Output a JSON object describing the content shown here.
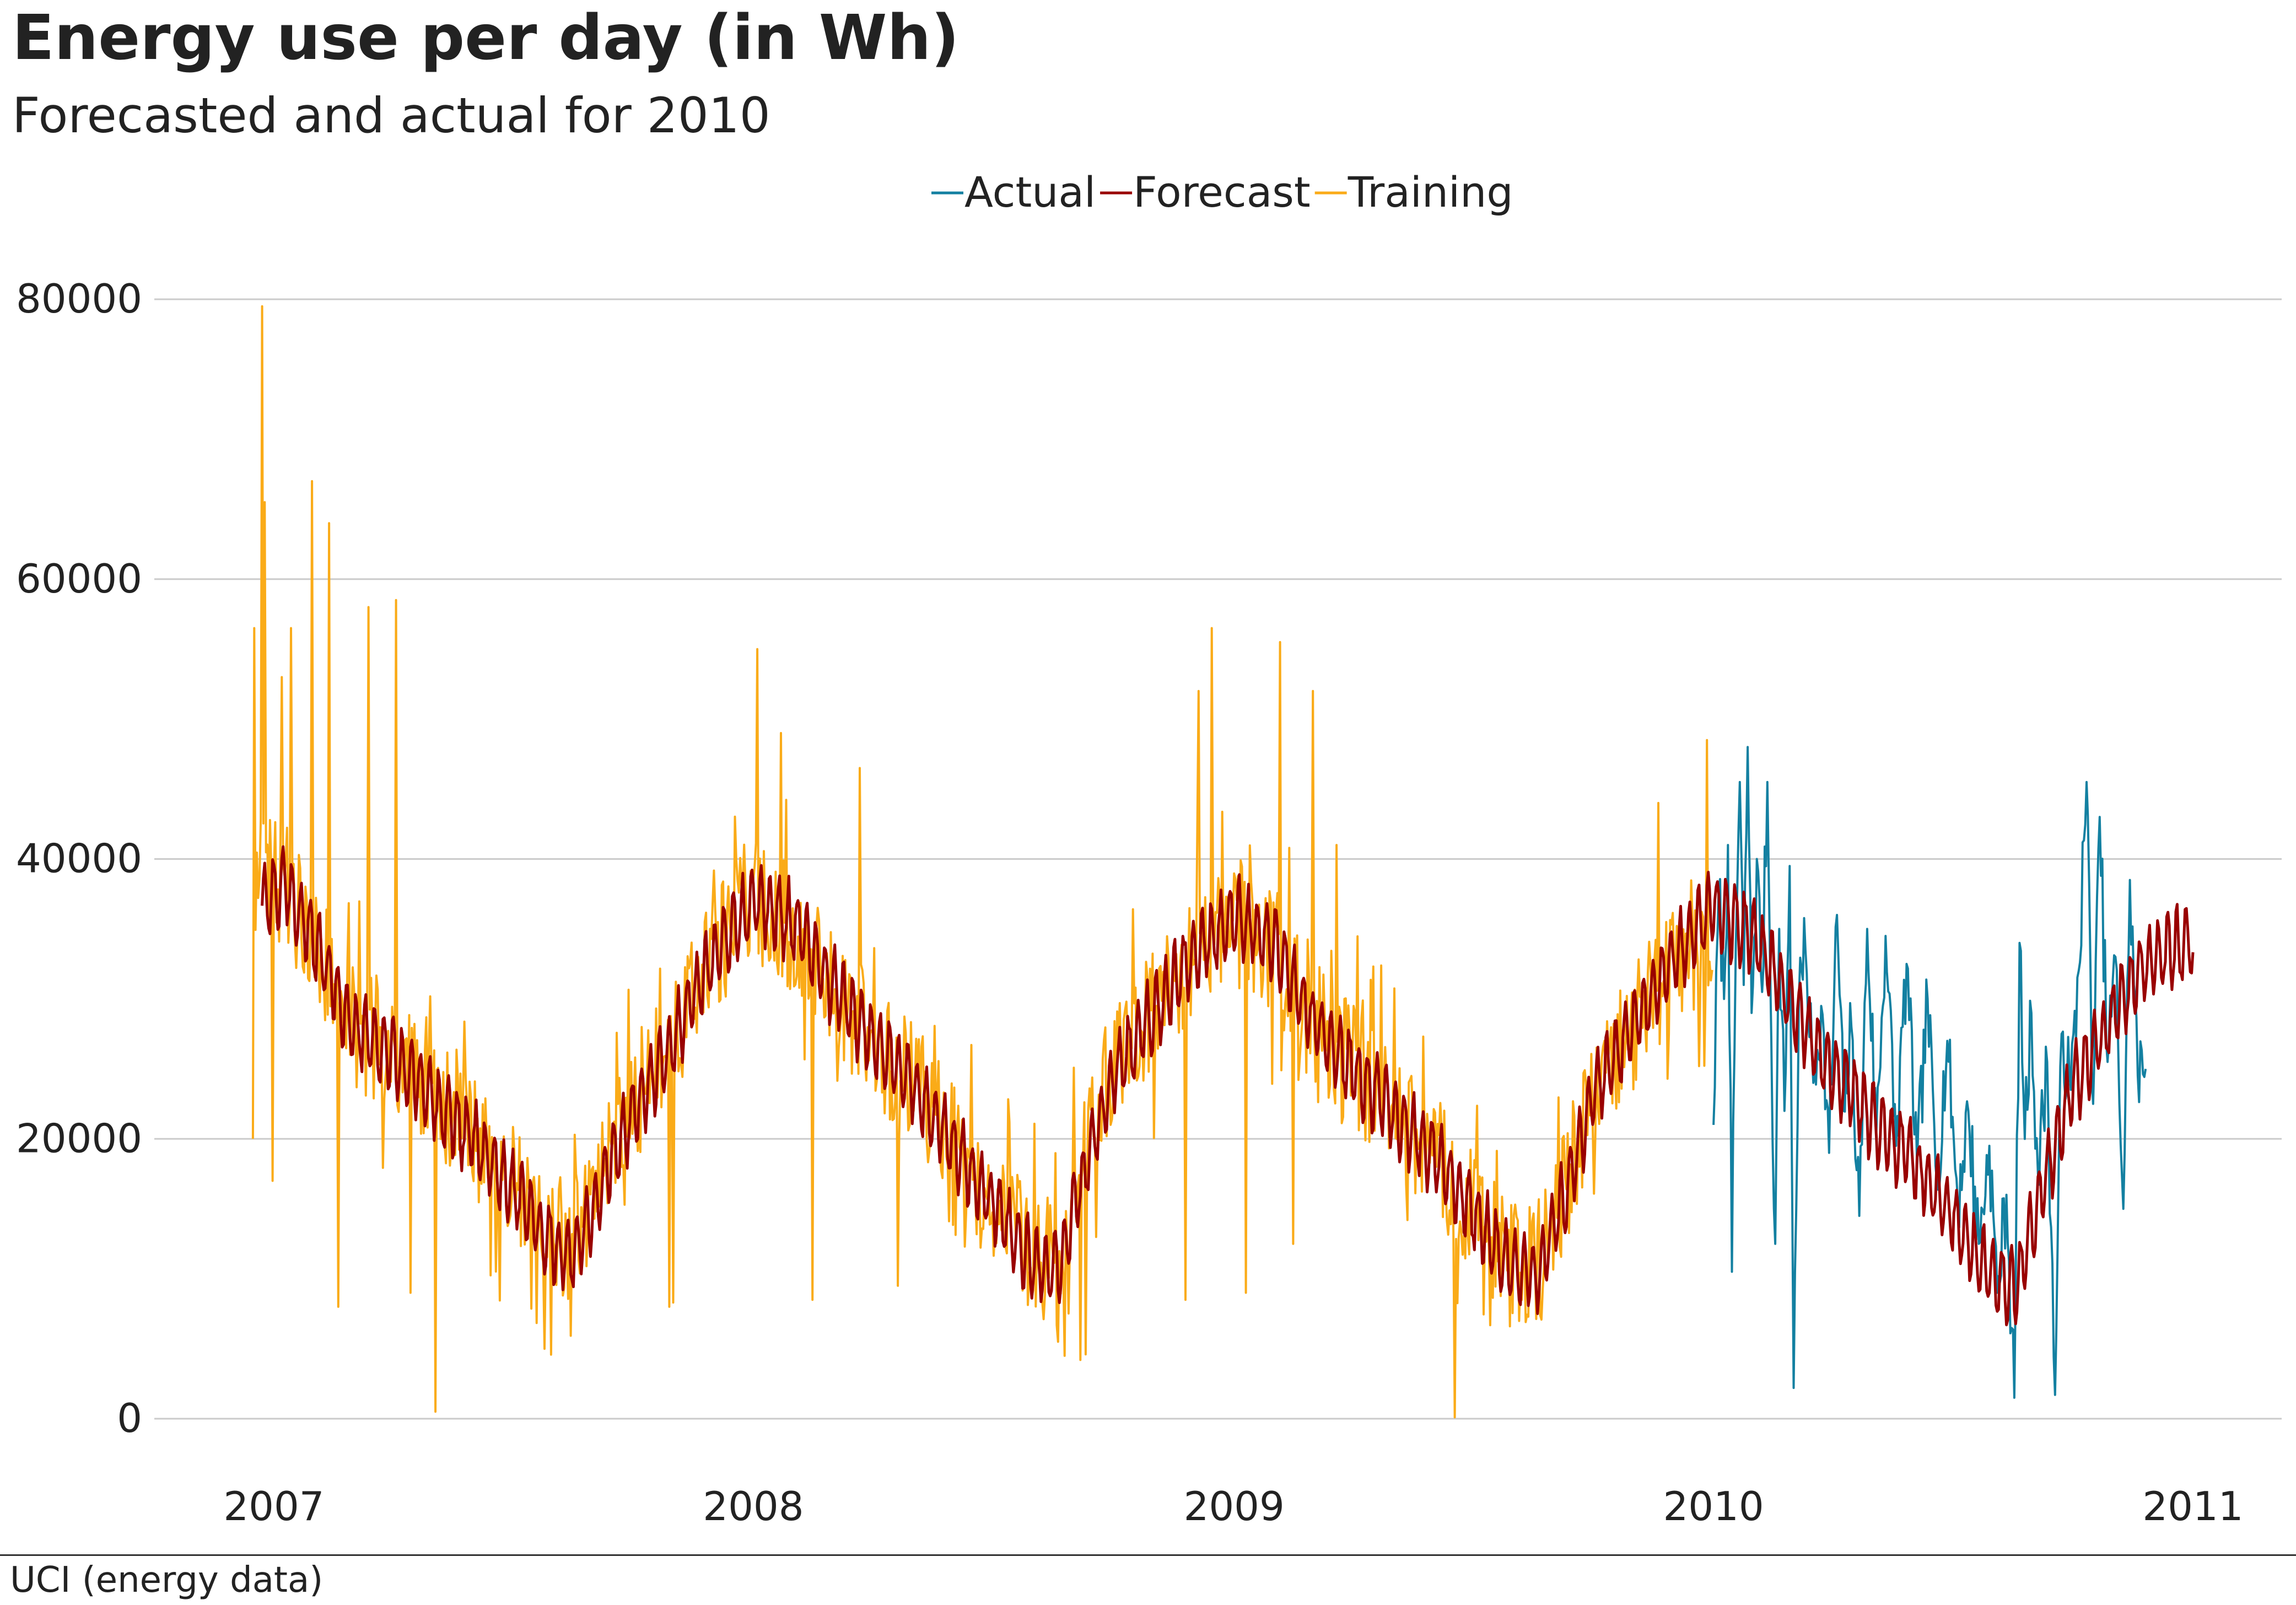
{
  "chart_data": {
    "type": "line",
    "title": "Energy use per day (in Wh)",
    "subtitle": "Forecasted and actual for 2010",
    "source": "UCI (energy data)",
    "xlabel": "",
    "ylabel": "",
    "x_ticks": [
      "2007",
      "2008",
      "2009",
      "2010",
      "2011"
    ],
    "y_ticks": [
      0,
      20000,
      40000,
      60000,
      80000
    ],
    "ylim": [
      0,
      80000
    ],
    "xlim": [
      "2006-12-16",
      "2011-01-15"
    ],
    "grid": "horizontal",
    "legend_position": "top-center",
    "series": [
      {
        "name": "Actual",
        "color": "#1380A1",
        "x_start": "2010-01-01",
        "x_end": "2010-11-26",
        "points": [
          [
            "2010-01-01",
            21000
          ],
          [
            "2010-01-05",
            38000
          ],
          [
            "2010-01-09",
            30000
          ],
          [
            "2010-01-12",
            41000
          ],
          [
            "2010-01-15",
            10500
          ],
          [
            "2010-01-18",
            34000
          ],
          [
            "2010-01-21",
            45500
          ],
          [
            "2010-01-24",
            31000
          ],
          [
            "2010-01-27",
            48000
          ],
          [
            "2010-01-30",
            29000
          ],
          [
            "2010-02-03",
            40000
          ],
          [
            "2010-02-07",
            30500
          ],
          [
            "2010-02-11",
            45500
          ],
          [
            "2010-02-14",
            27000
          ],
          [
            "2010-02-17",
            12500
          ],
          [
            "2010-02-20",
            35000
          ],
          [
            "2010-02-24",
            22000
          ],
          [
            "2010-02-28",
            39500
          ],
          [
            "2010-03-03",
            2200
          ],
          [
            "2010-03-07",
            30000
          ],
          [
            "2010-03-12",
            33500
          ],
          [
            "2010-03-18",
            24000
          ],
          [
            "2010-03-24",
            29500
          ],
          [
            "2010-03-30",
            19000
          ],
          [
            "2010-04-05",
            36000
          ],
          [
            "2010-04-10",
            22000
          ],
          [
            "2010-04-16",
            28000
          ],
          [
            "2010-04-22",
            14500
          ],
          [
            "2010-04-28",
            35000
          ],
          [
            "2010-05-05",
            20500
          ],
          [
            "2010-05-12",
            34500
          ],
          [
            "2010-05-20",
            19500
          ],
          [
            "2010-05-28",
            32500
          ],
          [
            "2010-06-05",
            18000
          ],
          [
            "2010-06-13",
            30000
          ],
          [
            "2010-06-20",
            17000
          ],
          [
            "2010-06-28",
            27000
          ],
          [
            "2010-07-06",
            15500
          ],
          [
            "2010-07-14",
            22000
          ],
          [
            "2010-07-22",
            12500
          ],
          [
            "2010-07-30",
            19500
          ],
          [
            "2010-08-05",
            9000
          ],
          [
            "2010-08-12",
            16000
          ],
          [
            "2010-08-18",
            1500
          ],
          [
            "2010-08-22",
            34000
          ],
          [
            "2010-08-26",
            20000
          ],
          [
            "2010-08-31",
            29000
          ],
          [
            "2010-09-05",
            17500
          ],
          [
            "2010-09-12",
            25500
          ],
          [
            "2010-09-18",
            1700
          ],
          [
            "2010-09-23",
            27500
          ],
          [
            "2010-09-30",
            23500
          ],
          [
            "2010-10-06",
            32000
          ],
          [
            "2010-10-12",
            45500
          ],
          [
            "2010-10-17",
            22500
          ],
          [
            "2010-10-22",
            43000
          ],
          [
            "2010-10-28",
            25500
          ],
          [
            "2010-11-03",
            33000
          ],
          [
            "2010-11-09",
            15000
          ],
          [
            "2010-11-14",
            38500
          ],
          [
            "2010-11-20",
            24500
          ],
          [
            "2010-11-26",
            25000
          ]
        ]
      },
      {
        "name": "Forecast",
        "color": "#990000",
        "x_start": "2006-12-23",
        "x_end": "2011-01-01",
        "seasonal_profile": [
          [
            "2006-12-23",
            37000
          ],
          [
            "2007-01-10",
            38000
          ],
          [
            "2007-02-01",
            34000
          ],
          [
            "2007-03-01",
            28000
          ],
          [
            "2007-04-01",
            26000
          ],
          [
            "2007-05-01",
            23000
          ],
          [
            "2007-06-01",
            20000
          ],
          [
            "2007-07-01",
            16500
          ],
          [
            "2007-08-01",
            12500
          ],
          [
            "2007-08-15",
            11500
          ],
          [
            "2007-09-01",
            15000
          ],
          [
            "2007-10-01",
            22000
          ],
          [
            "2007-11-01",
            27000
          ],
          [
            "2007-12-01",
            33000
          ],
          [
            "2008-01-01",
            37000
          ],
          [
            "2008-02-01",
            35500
          ],
          [
            "2008-03-01",
            31000
          ],
          [
            "2008-04-01",
            27000
          ],
          [
            "2008-05-01",
            24000
          ],
          [
            "2008-06-01",
            19500
          ],
          [
            "2008-07-01",
            15500
          ],
          [
            "2008-08-01",
            11000
          ],
          [
            "2008-08-20",
            10500
          ],
          [
            "2008-09-10",
            18000
          ],
          [
            "2008-10-01",
            24500
          ],
          [
            "2008-11-01",
            29000
          ],
          [
            "2008-12-01",
            33000
          ],
          [
            "2009-01-01",
            36000
          ],
          [
            "2009-02-01",
            34000
          ],
          [
            "2009-03-01",
            28500
          ],
          [
            "2009-04-01",
            25000
          ],
          [
            "2009-05-01",
            22000
          ],
          [
            "2009-06-01",
            19000
          ],
          [
            "2009-07-01",
            15000
          ],
          [
            "2009-08-01",
            10500
          ],
          [
            "2009-08-20",
            10000
          ],
          [
            "2009-09-10",
            16000
          ],
          [
            "2009-10-01",
            23000
          ],
          [
            "2009-11-01",
            28000
          ],
          [
            "2009-12-01",
            33000
          ],
          [
            "2010-01-01",
            36500
          ],
          [
            "2010-02-01",
            34500
          ],
          [
            "2010-03-01",
            29500
          ],
          [
            "2010-04-01",
            25000
          ],
          [
            "2010-05-01",
            21500
          ],
          [
            "2010-06-01",
            18500
          ],
          [
            "2010-07-01",
            14500
          ],
          [
            "2010-08-01",
            10000
          ],
          [
            "2010-08-20",
            9500
          ],
          [
            "2010-09-10",
            17000
          ],
          [
            "2010-10-01",
            23500
          ],
          [
            "2010-11-01",
            29000
          ],
          [
            "2010-12-01",
            33000
          ],
          [
            "2011-01-01",
            34000
          ]
        ],
        "weekly_amplitude": 2500
      },
      {
        "name": "Training",
        "color": "#FAAB18",
        "x_start": "2006-12-16",
        "x_end": "2009-12-31",
        "seasonal_profile": [
          [
            "2006-12-16",
            40000
          ],
          [
            "2007-01-10",
            38000
          ],
          [
            "2007-02-01",
            34000
          ],
          [
            "2007-03-01",
            28000
          ],
          [
            "2007-04-01",
            26000
          ],
          [
            "2007-05-01",
            23000
          ],
          [
            "2007-06-01",
            20000
          ],
          [
            "2007-07-01",
            16500
          ],
          [
            "2007-08-01",
            13000
          ],
          [
            "2007-08-15",
            12500
          ],
          [
            "2007-09-01",
            15500
          ],
          [
            "2007-10-01",
            22000
          ],
          [
            "2007-11-01",
            27000
          ],
          [
            "2007-12-01",
            33000
          ],
          [
            "2008-01-01",
            37000
          ],
          [
            "2008-02-01",
            35000
          ],
          [
            "2008-03-01",
            30500
          ],
          [
            "2008-04-01",
            27000
          ],
          [
            "2008-05-01",
            24000
          ],
          [
            "2008-06-01",
            19500
          ],
          [
            "2008-07-01",
            15500
          ],
          [
            "2008-08-01",
            12000
          ],
          [
            "2008-08-20",
            11000
          ],
          [
            "2008-09-10",
            19000
          ],
          [
            "2008-10-01",
            25000
          ],
          [
            "2008-11-01",
            29000
          ],
          [
            "2008-12-01",
            33000
          ],
          [
            "2009-01-01",
            36000
          ],
          [
            "2009-02-01",
            33500
          ],
          [
            "2009-03-01",
            28500
          ],
          [
            "2009-04-01",
            25000
          ],
          [
            "2009-05-01",
            22000
          ],
          [
            "2009-06-01",
            19000
          ],
          [
            "2009-07-01",
            15000
          ],
          [
            "2009-08-01",
            11000
          ],
          [
            "2009-08-20",
            10500
          ],
          [
            "2009-09-10",
            16500
          ],
          [
            "2009-10-01",
            23000
          ],
          [
            "2009-11-01",
            28000
          ],
          [
            "2009-12-01",
            32000
          ],
          [
            "2009-12-31",
            35000
          ]
        ],
        "noise_amplitude": 9000,
        "notable_points": [
          [
            "2006-12-16",
            20000
          ],
          [
            "2006-12-17",
            56500
          ],
          [
            "2006-12-23",
            79500
          ],
          [
            "2006-12-25",
            65500
          ],
          [
            "2006-12-31",
            17000
          ],
          [
            "2007-01-07",
            53000
          ],
          [
            "2007-01-14",
            56500
          ],
          [
            "2007-01-30",
            67000
          ],
          [
            "2007-02-12",
            64000
          ],
          [
            "2007-02-19",
            8000
          ],
          [
            "2007-03-14",
            58000
          ],
          [
            "2007-04-04",
            58500
          ],
          [
            "2007-04-15",
            9000
          ],
          [
            "2007-05-04",
            500
          ],
          [
            "2007-07-26",
            5000
          ],
          [
            "2007-10-29",
            8000
          ],
          [
            "2007-11-01",
            8300
          ],
          [
            "2008-01-04",
            55000
          ],
          [
            "2008-01-22",
            49000
          ],
          [
            "2008-02-15",
            8500
          ],
          [
            "2008-03-22",
            46500
          ],
          [
            "2008-04-20",
            9500
          ],
          [
            "2008-08-20",
            5500
          ],
          [
            "2008-08-25",
            4500
          ],
          [
            "2008-09-06",
            4200
          ],
          [
            "2008-09-10",
            4600
          ],
          [
            "2008-11-25",
            8500
          ],
          [
            "2008-12-05",
            52000
          ],
          [
            "2008-12-15",
            56500
          ],
          [
            "2009-01-10",
            9000
          ],
          [
            "2009-02-05",
            55500
          ],
          [
            "2009-02-15",
            12500
          ],
          [
            "2009-03-02",
            52000
          ],
          [
            "2009-03-20",
            41000
          ],
          [
            "2009-06-18",
            100
          ],
          [
            "2009-11-20",
            44000
          ],
          [
            "2009-12-27",
            48500
          ]
        ]
      }
    ]
  }
}
